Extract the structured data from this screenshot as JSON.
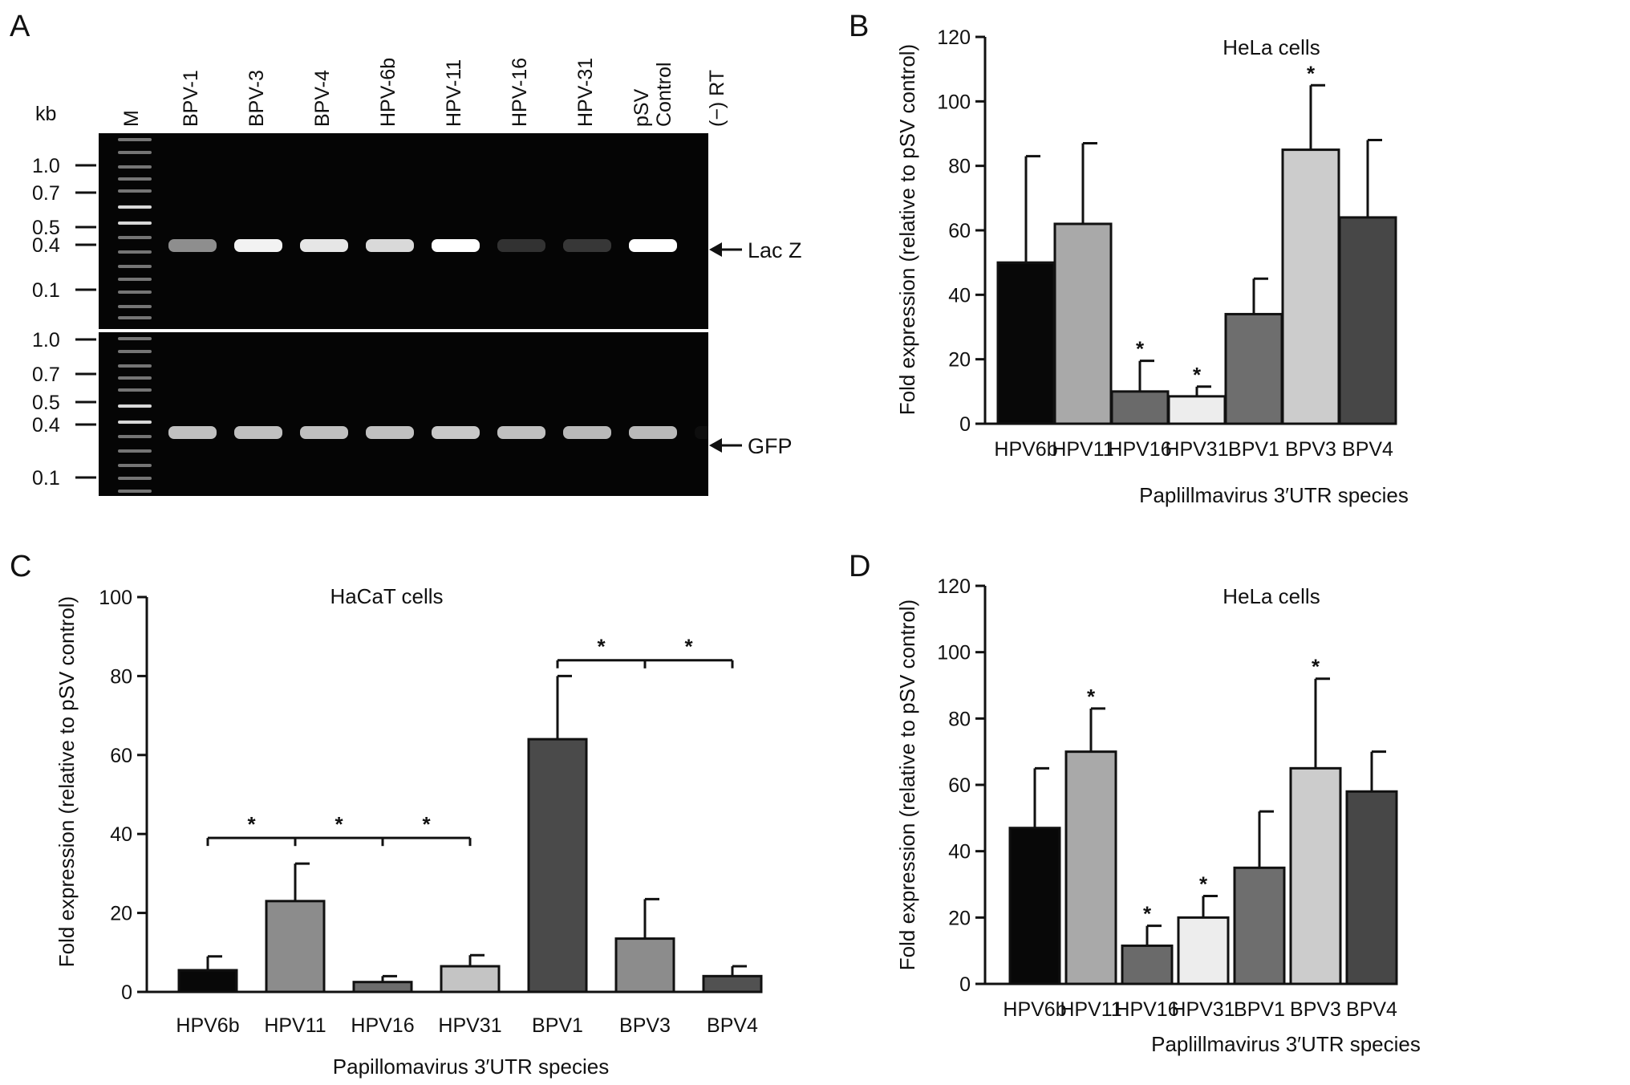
{
  "panel_labels": [
    "A",
    "B",
    "C",
    "D"
  ],
  "gel": {
    "kb_label": "kb",
    "marker_label": "M",
    "lanes": [
      "BPV-1",
      "BPV-3",
      "BPV-4",
      "HPV-6b",
      "HPV-11",
      "HPV-16",
      "HPV-31",
      "pSV Control",
      "(−) RT"
    ],
    "top": {
      "size_labels": [
        "1.0",
        "0.7",
        "0.5",
        "0.4",
        "0.1"
      ],
      "arrow_label": "Lac Z",
      "band_intensity": [
        0.55,
        0.95,
        0.9,
        0.85,
        1.0,
        0.18,
        0.2,
        1.0,
        0.0
      ]
    },
    "bottom": {
      "size_labels": [
        "1.0",
        "0.7",
        "0.5",
        "0.4",
        "0.1"
      ],
      "arrow_label": "GFP",
      "band_intensity": [
        0.75,
        0.75,
        0.75,
        0.75,
        0.78,
        0.75,
        0.72,
        0.72,
        0.04
      ]
    }
  },
  "chart_data": [
    {
      "panel": "B",
      "type": "bar",
      "title": "HeLa cells",
      "xlabel": "Paplillmavirus 3′UTR species",
      "ylabel": "Fold expression (relative to pSV control)",
      "ylim": [
        0,
        120
      ],
      "yticks": [
        0,
        20,
        40,
        60,
        80,
        100,
        120
      ],
      "categories": [
        "HPV6b",
        "HPV11",
        "HPV16",
        "HPV31",
        "BPV1",
        "BPV3",
        "BPV4"
      ],
      "values": [
        50,
        62,
        10,
        8.5,
        34,
        85,
        64
      ],
      "errors": [
        33,
        25,
        9.5,
        3,
        11,
        20,
        24
      ],
      "significant": [
        false,
        false,
        true,
        true,
        false,
        true,
        false
      ],
      "significance_marker": "*",
      "colors": [
        "#080808",
        "#a9a9a9",
        "#6a6a6a",
        "#ededed",
        "#6e6e6e",
        "#cccccc",
        "#474747"
      ]
    },
    {
      "panel": "C",
      "type": "bar",
      "title": "HaCaT cells",
      "xlabel": "Papillomavirus 3′UTR species",
      "ylabel": "Fold expression (relative to pSV control)",
      "ylim": [
        0,
        100
      ],
      "yticks": [
        0,
        20,
        40,
        60,
        80,
        100
      ],
      "categories": [
        "HPV6b",
        "HPV11",
        "HPV16",
        "HPV31",
        "BPV1",
        "BPV3",
        "BPV4"
      ],
      "values": [
        5.5,
        23,
        2.5,
        6.5,
        64,
        13.5,
        4
      ],
      "errors": [
        3.5,
        9.5,
        1.5,
        2.8,
        16,
        10,
        2.5
      ],
      "significant": [
        false,
        false,
        false,
        false,
        false,
        false,
        false
      ],
      "significance_marker": "*",
      "colors": [
        "#080808",
        "#8c8c8c",
        "#6c6c6c",
        "#c4c4c4",
        "#4a4a4a",
        "#8c8c8c",
        "#515151"
      ],
      "brackets": [
        {
          "from": 0,
          "to": 1,
          "y": 39
        },
        {
          "from": 1,
          "to": 2,
          "y": 39
        },
        {
          "from": 2,
          "to": 3,
          "y": 39
        },
        {
          "from": 4,
          "to": 5,
          "y": 84
        },
        {
          "from": 5,
          "to": 6,
          "y": 84
        }
      ]
    },
    {
      "panel": "D",
      "type": "bar",
      "title": "HeLa cells",
      "xlabel": "Paplillmavirus 3′UTR species",
      "ylabel": "Fold expression (relative to pSV control)",
      "ylim": [
        0,
        120
      ],
      "yticks": [
        0,
        20,
        40,
        60,
        80,
        100,
        120
      ],
      "categories": [
        "HPV6b",
        "HPV11",
        "HPV16",
        "HPV31",
        "BPV1",
        "BPV3",
        "BPV4"
      ],
      "values": [
        47,
        70,
        11.5,
        20,
        35,
        65,
        58
      ],
      "errors": [
        18,
        13,
        6,
        6.5,
        17,
        27,
        12
      ],
      "significant": [
        false,
        true,
        true,
        true,
        false,
        true,
        false
      ],
      "significance_marker": "*",
      "colors": [
        "#080808",
        "#a9a9a9",
        "#6a6a6a",
        "#ededed",
        "#6e6e6e",
        "#cccccc",
        "#474747"
      ]
    }
  ]
}
